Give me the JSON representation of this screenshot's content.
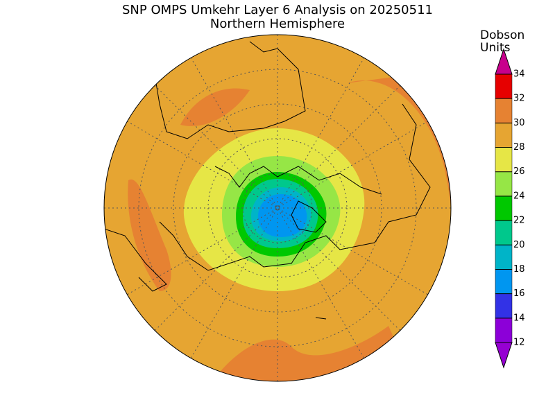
{
  "header": {
    "title": "SNP OMPS Umkehr Layer 6 Analysis on 20250511",
    "subtitle": "Northern Hemisphere"
  },
  "colorbar": {
    "label_lines": [
      "Dobson",
      "Units"
    ],
    "ticks": [
      12,
      14,
      16,
      18,
      20,
      22,
      24,
      26,
      28,
      30,
      32,
      34
    ],
    "colors": [
      "#8c00d8",
      "#3232e6",
      "#0096f0",
      "#00b4c8",
      "#00c88c",
      "#00c800",
      "#96e646",
      "#e6e646",
      "#e6a532",
      "#e68232",
      "#e60000"
    ],
    "under_color": "#9600d2",
    "over_color": "#c8008c"
  }
}
